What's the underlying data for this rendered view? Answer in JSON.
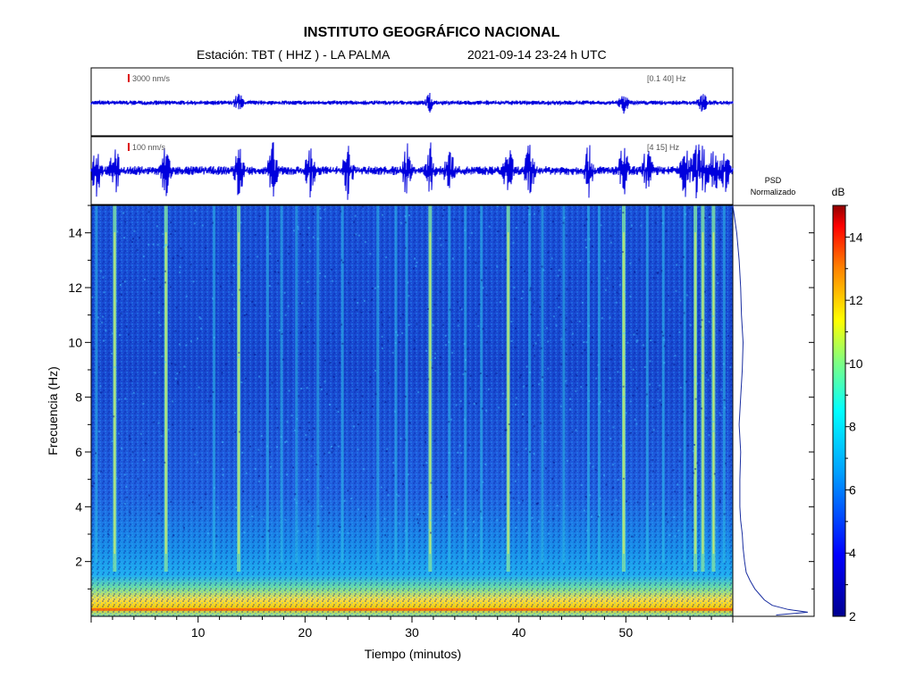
{
  "header": {
    "title": "INSTITUTO GEOGRÁFICO NACIONAL",
    "station": "Estación:  TBT ( HHZ ) - LA PALMA",
    "datetime": "2021-09-14  23-24 h UTC"
  },
  "chart_data": [
    {
      "type": "line",
      "panel": "seismogram-broadband",
      "scale_label": "3000 nm/s",
      "band_label": "[0.1 40]  Hz",
      "x_unit": "minutes",
      "xlim": [
        0,
        60
      ],
      "event_minutes": [
        13.8,
        31.7,
        49.8,
        57.2
      ]
    },
    {
      "type": "line",
      "panel": "seismogram-filtered",
      "scale_label": "100 nm/s",
      "band_label": "[4 15]  Hz",
      "x_unit": "minutes",
      "xlim": [
        0,
        60
      ],
      "event_minutes": [
        0.5,
        2.2,
        7.0,
        13.8,
        17.0,
        20.5,
        24.0,
        29.5,
        31.7,
        33.5,
        39.0,
        41.0,
        46.5,
        49.8,
        52.0,
        55.5,
        56.5,
        57.2,
        58.2,
        59.2
      ]
    },
    {
      "type": "heatmap",
      "panel": "spectrogram",
      "xlabel": "Tiempo (minutos)",
      "ylabel": "Frecuencia (Hz)",
      "xlim": [
        0,
        60
      ],
      "ylim": [
        0,
        15
      ],
      "x_ticks": [
        10,
        20,
        30,
        40,
        50
      ],
      "y_ticks": [
        2,
        4,
        6,
        8,
        10,
        12,
        14
      ],
      "event_stripes_minutes": [
        2.2,
        7.0,
        13.8,
        31.7,
        39.0,
        49.8,
        56.5,
        57.2,
        58.2
      ],
      "weak_stripes_minutes": [
        0.5,
        11.5,
        16.5,
        17.8,
        19.2,
        21.2,
        23.5,
        26.8,
        28.5,
        29.5,
        33.5,
        35.0,
        36.5,
        41.0,
        42.2,
        44.2,
        46.5,
        47.5,
        52.0,
        53.5,
        55.5,
        59.2
      ],
      "noise_band_hz": [
        0,
        1.5
      ],
      "peak_band_hz": 0.25
    },
    {
      "type": "line",
      "panel": "psd",
      "title": "PSD\nNormalizado",
      "title_line1": "PSD",
      "title_line2": "Normalizado",
      "ylim": [
        0,
        15
      ],
      "profile": [
        {
          "f": 0.05,
          "p": 0.55
        },
        {
          "f": 0.15,
          "p": 0.95
        },
        {
          "f": 0.25,
          "p": 0.7
        },
        {
          "f": 0.4,
          "p": 0.5
        },
        {
          "f": 0.6,
          "p": 0.4
        },
        {
          "f": 0.8,
          "p": 0.34
        },
        {
          "f": 1.0,
          "p": 0.28
        },
        {
          "f": 1.3,
          "p": 0.22
        },
        {
          "f": 1.6,
          "p": 0.17
        },
        {
          "f": 2.0,
          "p": 0.15
        },
        {
          "f": 2.5,
          "p": 0.13
        },
        {
          "f": 3.0,
          "p": 0.12
        },
        {
          "f": 3.5,
          "p": 0.1
        },
        {
          "f": 4.0,
          "p": 0.09
        },
        {
          "f": 5.0,
          "p": 0.09
        },
        {
          "f": 6.0,
          "p": 0.1
        },
        {
          "f": 7.0,
          "p": 0.08
        },
        {
          "f": 8.0,
          "p": 0.1
        },
        {
          "f": 9.0,
          "p": 0.12
        },
        {
          "f": 10.0,
          "p": 0.13
        },
        {
          "f": 11.0,
          "p": 0.11
        },
        {
          "f": 12.0,
          "p": 0.1
        },
        {
          "f": 13.0,
          "p": 0.08
        },
        {
          "f": 14.0,
          "p": 0.05
        },
        {
          "f": 15.0,
          "p": 0.0
        }
      ]
    },
    {
      "type": "heatmap",
      "panel": "colorbar",
      "label": "dB",
      "range": [
        2,
        15
      ],
      "ticks": [
        2,
        4,
        6,
        8,
        10,
        12,
        14
      ]
    }
  ],
  "colors": {
    "trace": "#0000dd",
    "axis": "#000000",
    "scale_bar": "#dd0000",
    "psd_line": "#1a2ea0"
  }
}
